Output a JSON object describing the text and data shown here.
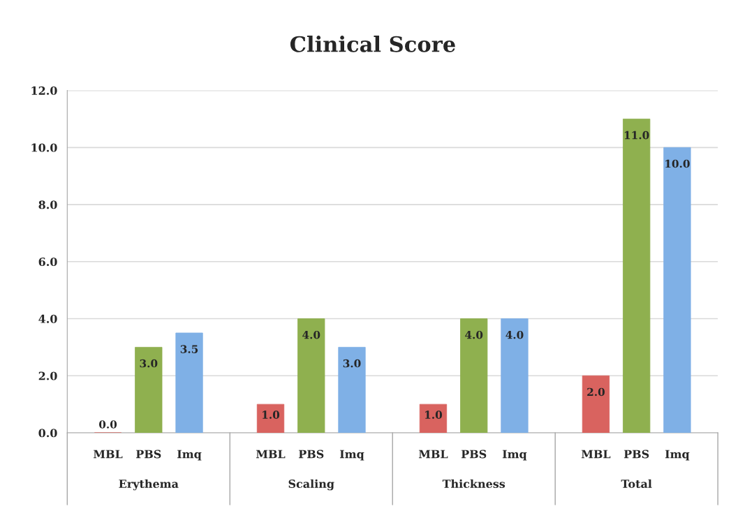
{
  "chart_data": {
    "type": "bar",
    "title": "Clinical Score",
    "categories": [
      "Erythema",
      "Scaling",
      "Thickness",
      "Total"
    ],
    "series": [
      {
        "name": "MBL",
        "color": "#d9635f",
        "values": [
          0.0,
          1.0,
          1.0,
          2.0
        ],
        "value_labels": [
          "0.0",
          "1.0",
          "1.0",
          "2.0"
        ]
      },
      {
        "name": "PBS",
        "color": "#8fb04f",
        "values": [
          3.0,
          4.0,
          4.0,
          11.0
        ],
        "value_labels": [
          "3.0",
          "4.0",
          "4.0",
          "11.0"
        ]
      },
      {
        "name": "Imq",
        "color": "#7fb0e6",
        "values": [
          3.5,
          3.0,
          4.0,
          10.0
        ],
        "value_labels": [
          "3.5",
          "3.0",
          "4.0",
          "10.0"
        ]
      }
    ],
    "ylim": [
      0,
      12
    ],
    "yticks": [
      {
        "value": 0,
        "label": "0.0"
      },
      {
        "value": 2,
        "label": "2.0"
      },
      {
        "value": 4,
        "label": "4.0"
      },
      {
        "value": 6,
        "label": "6.0"
      },
      {
        "value": 8,
        "label": "8.0"
      },
      {
        "value": 10,
        "label": "10.0"
      },
      {
        "value": 12,
        "label": "12.0"
      }
    ],
    "grid": "y",
    "legend": false
  }
}
